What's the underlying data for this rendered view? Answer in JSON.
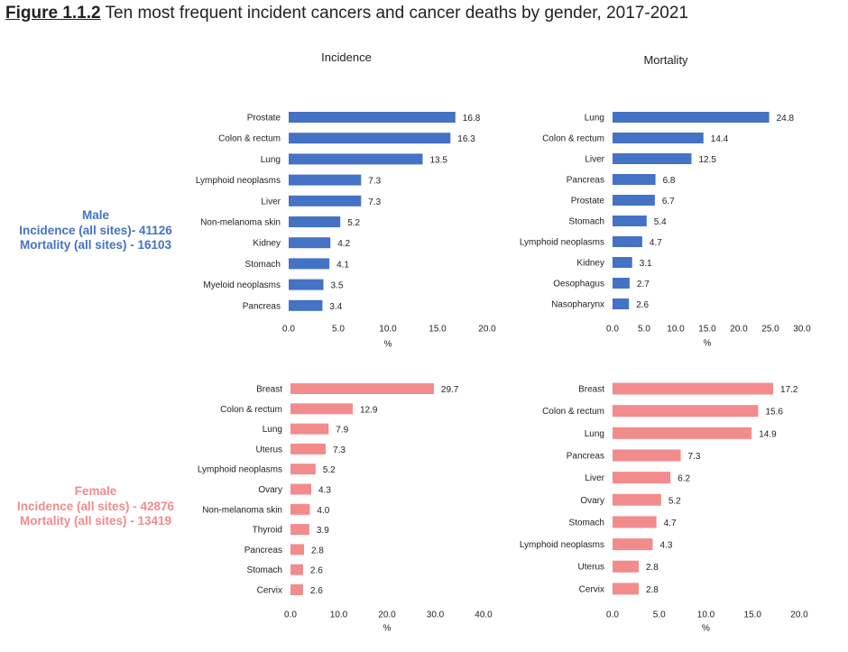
{
  "figure": {
    "label": "Figure 1.1.2",
    "title": "Ten most frequent incident cancers and cancer deaths by gender, 2017-2021"
  },
  "columns": {
    "incidence": "Incidence",
    "mortality": "Mortality"
  },
  "groups": {
    "male": {
      "name": "Male",
      "incidence_line": "Incidence (all sites)- 41126",
      "mortality_line": "Mortality (all sites) - 16103",
      "color": "#4472c4"
    },
    "female": {
      "name": "Female",
      "incidence_line": "Incidence (all sites) - 42876",
      "mortality_line": "Mortality (all sites) - 13419",
      "color": "#f28b8b"
    }
  },
  "chart_data": [
    {
      "type": "bar",
      "orientation": "horizontal",
      "title": "Incidence",
      "xlabel": "%",
      "xlim": [
        0,
        20
      ],
      "xticks": [
        "0.0",
        "5.0",
        "10.0",
        "15.0",
        "20.0"
      ],
      "categories": [
        "Prostate",
        "Colon & rectum",
        "Lung",
        "Lymphoid neoplasms",
        "Liver",
        "Non-melanoma skin",
        "Kidney",
        "Stomach",
        "Myeloid neoplasms",
        "Pancreas"
      ],
      "values": [
        16.8,
        16.3,
        13.5,
        7.3,
        7.3,
        5.2,
        4.2,
        4.1,
        3.5,
        3.4
      ],
      "color": "#4472c4"
    },
    {
      "type": "bar",
      "orientation": "horizontal",
      "title": "Mortality",
      "xlabel": "%",
      "xlim": [
        0,
        30
      ],
      "xticks": [
        "0.0",
        "5.0",
        "10.0",
        "15.0",
        "20.0",
        "25.0",
        "30.0"
      ],
      "categories": [
        "Lung",
        "Colon & rectum",
        "Liver",
        "Pancreas",
        "Prostate",
        "Stomach",
        "Lymphoid neoplasms",
        "Kidney",
        "Oesophagus",
        "Nasopharynx"
      ],
      "values": [
        24.8,
        14.4,
        12.5,
        6.8,
        6.7,
        5.4,
        4.7,
        3.1,
        2.7,
        2.6
      ],
      "color": "#4472c4"
    },
    {
      "type": "bar",
      "orientation": "horizontal",
      "title": "Incidence",
      "xlabel": "%",
      "xlim": [
        0,
        40
      ],
      "xticks": [
        "0.0",
        "10.0",
        "20.0",
        "30.0",
        "40.0"
      ],
      "categories": [
        "Breast",
        "Colon & rectum",
        "Lung",
        "Uterus",
        "Lymphoid neoplasms",
        "Ovary",
        "Non-melanoma skin",
        "Thyroid",
        "Pancreas",
        "Stomach",
        "Cervix"
      ],
      "values": [
        29.7,
        12.9,
        7.9,
        7.3,
        5.2,
        4.3,
        4.0,
        3.9,
        2.8,
        2.6,
        2.6
      ],
      "color": "#f28b8b"
    },
    {
      "type": "bar",
      "orientation": "horizontal",
      "title": "Mortality",
      "xlabel": "%",
      "xlim": [
        0,
        20
      ],
      "xticks": [
        "0.0",
        "5.0",
        "10.0",
        "15.0",
        "20.0"
      ],
      "categories": [
        "Breast",
        "Colon & rectum",
        "Lung",
        "Pancreas",
        "Liver",
        "Ovary",
        "Stomach",
        "Lymphoid neoplasms",
        "Uterus",
        "Cervix"
      ],
      "values": [
        17.2,
        15.6,
        14.9,
        7.3,
        6.2,
        5.2,
        4.7,
        4.3,
        2.8,
        2.8
      ],
      "color": "#f28b8b"
    }
  ]
}
